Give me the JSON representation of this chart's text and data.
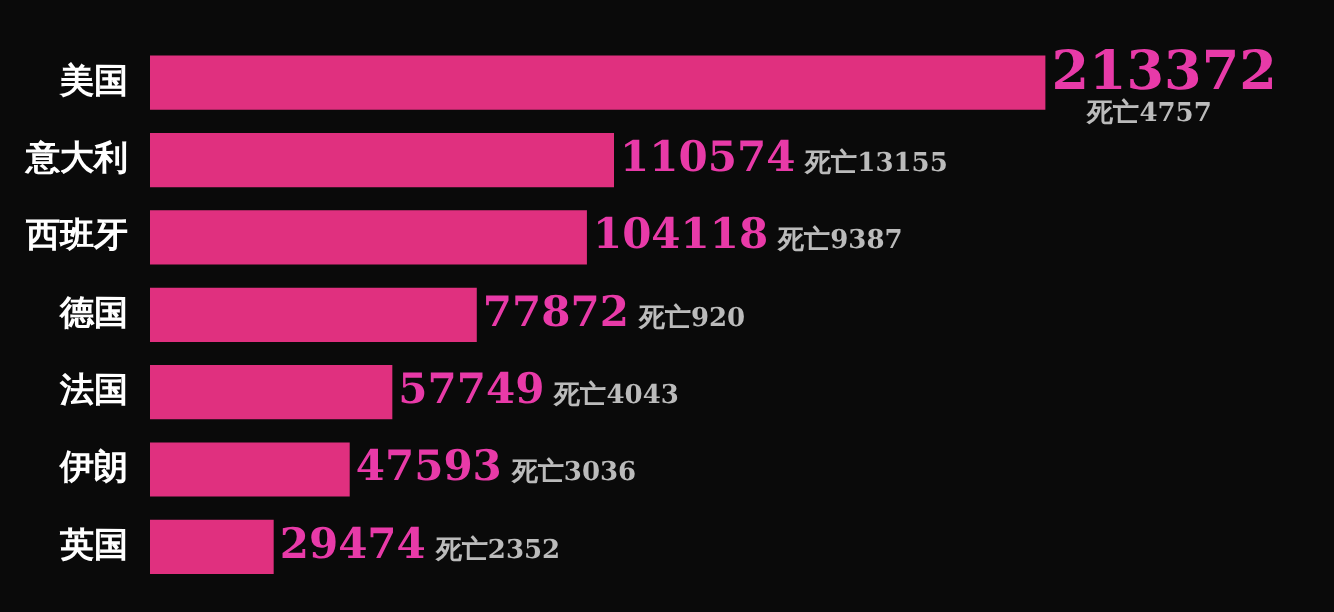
{
  "chart_data": {
    "type": "bar",
    "orientation": "horizontal",
    "data_labels": true,
    "categories": [
      "美国",
      "意大利",
      "西班牙",
      "德国",
      "法国",
      "伊朗",
      "英国"
    ],
    "values": [
      213372,
      110574,
      104118,
      77872,
      57749,
      47593,
      29474
    ],
    "color": "#e0307f",
    "annotations": [
      "死亡4757",
      "死亡13155",
      "死亡9387",
      "死亡920",
      "死亡4043",
      "死亡3036",
      "死亡2352"
    ]
  }
}
